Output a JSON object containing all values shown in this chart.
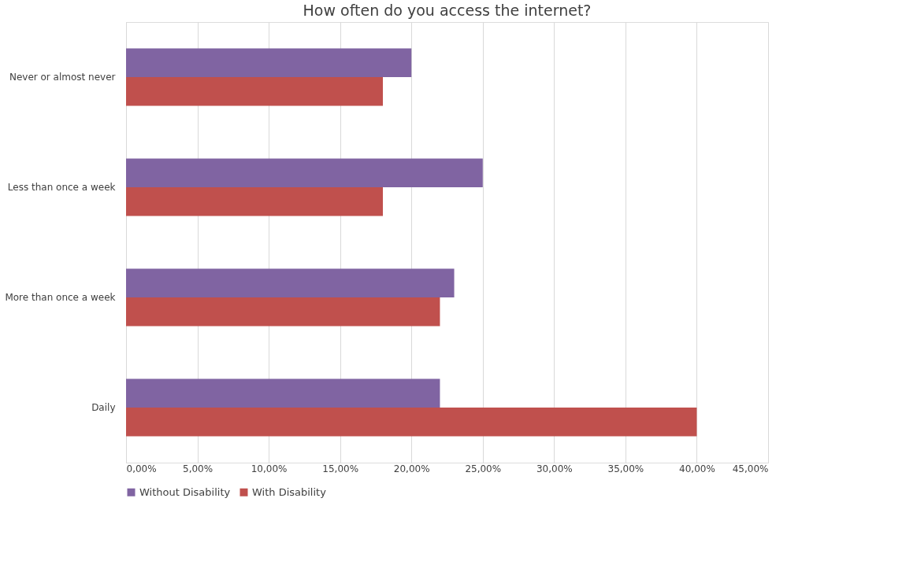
{
  "chart_data": {
    "type": "bar",
    "orientation": "horizontal",
    "title": "How often do you access the internet?",
    "categories": [
      "Never or almost never",
      "Less than once a week",
      "More than once a week",
      "Daily"
    ],
    "series": [
      {
        "name": "Without Disability",
        "color": "#8064a2",
        "values": [
          20,
          25,
          23,
          22
        ]
      },
      {
        "name": "With Disability",
        "color": "#c0504d",
        "values": [
          18,
          18,
          22,
          40
        ]
      }
    ],
    "xlim": [
      0,
      45
    ],
    "xticks": [
      {
        "value": 0,
        "label": "0,00%"
      },
      {
        "value": 5,
        "label": "5,00%"
      },
      {
        "value": 10,
        "label": "10,00%"
      },
      {
        "value": 15,
        "label": "15,00%"
      },
      {
        "value": 20,
        "label": "20,00%"
      },
      {
        "value": 25,
        "label": "25,00%"
      },
      {
        "value": 30,
        "label": "30,00%"
      },
      {
        "value": 35,
        "label": "35,00%"
      },
      {
        "value": 40,
        "label": "40,00%"
      },
      {
        "value": 45,
        "label": "45,00%"
      }
    ],
    "grid": "x",
    "legend": "bottom"
  }
}
